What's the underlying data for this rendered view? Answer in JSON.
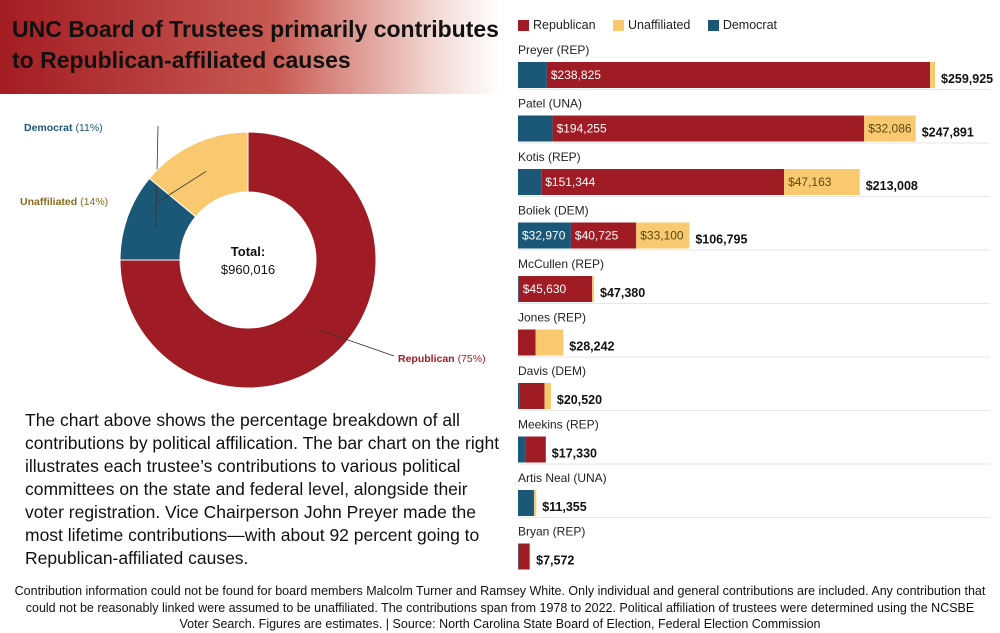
{
  "title": "UNC Board of Trustees primarily contributes to Republican-affiliated causes",
  "description": "The chart above shows the percentage breakdown of all contributions by political affilication. The bar chart on the right illustrates each trustee’s contributions to various political committees on the state and federal level, alongside their voter registration. Vice Chairperson John Preyer made the most lifetime contributions—with about 92 percent going to Republican-affiliated causes.",
  "footer": "Contribution information could not be found for board members Malcolm Turner and Ramsey White. Only individual and general contributions are included. Any contribution that could not be reasonably linked were assumed to be unaffiliated. The contributions span from 1978 to 2022. Political affiliation of trustees were determined using the NCSBE Voter Search. Figures are estimates. | Source: North Carolina State Board of Election, Federal Election Commission",
  "colors": {
    "republican": "#a01c24",
    "unaffiliated": "#f8c96f",
    "democrat": "#1b5777",
    "republican_text": "#a01c24",
    "unaffiliated_text": "#8a6a1e",
    "democrat_text": "#1b5777"
  },
  "chart_data": [
    {
      "type": "pie",
      "variant": "donut",
      "center_label": "Total:",
      "center_value": "$960,016",
      "slices": [
        {
          "name": "Democrat",
          "pct_label": "(11%)",
          "value": 11
        },
        {
          "name": "Unaffiliated",
          "pct_label": "(14%)",
          "value": 14
        },
        {
          "name": "Republican",
          "pct_label": "(75%)",
          "value": 75
        }
      ]
    },
    {
      "type": "bar",
      "orientation": "horizontal",
      "stacked": true,
      "legend": [
        "Republican",
        "Unaffiliated",
        "Democrat"
      ],
      "legend_position": "top",
      "stack_order": [
        "Democrat",
        "Republican",
        "Unaffiliated"
      ],
      "categories": [
        "Preyer (REP)",
        "Patel (UNA)",
        "Kotis (REP)",
        "Boliek (DEM)",
        "McCullen (REP)",
        "Jones (REP)",
        "Davis (DEM)",
        "Meekins (REP)",
        "Artis Neal (UNA)",
        "Bryan (REP)"
      ],
      "series": [
        {
          "name": "Democrat",
          "values": [
            18000,
            21550,
            14501,
            32970,
            500,
            0,
            1200,
            4600,
            9600,
            400
          ],
          "labels": [
            "",
            "",
            "",
            "$32,970",
            "",
            "",
            "",
            "",
            "",
            ""
          ]
        },
        {
          "name": "Republican",
          "values": [
            238825,
            194255,
            151344,
            40725,
            45630,
            11000,
            15300,
            12730,
            400,
            6900
          ],
          "labels": [
            "$238,825",
            "$194,255",
            "$151,344",
            "$40,725",
            "$45,630",
            "",
            "",
            "",
            "",
            ""
          ]
        },
        {
          "name": "Unaffiliated",
          "values": [
            3100,
            32086,
            47163,
            33100,
            1250,
            17242,
            4020,
            0,
            1355,
            272
          ],
          "labels": [
            "",
            "$32,086",
            "$47,163",
            "$33,100",
            "",
            "",
            "",
            "",
            "",
            ""
          ]
        }
      ],
      "totals": [
        "$259,925",
        "$247,891",
        "$213,008",
        "$106,795",
        "$47,380",
        "$28,242",
        "$20,520",
        "$17,330",
        "$11,355",
        "$7,572"
      ],
      "xlim": [
        0,
        259925
      ],
      "grid": false
    }
  ]
}
